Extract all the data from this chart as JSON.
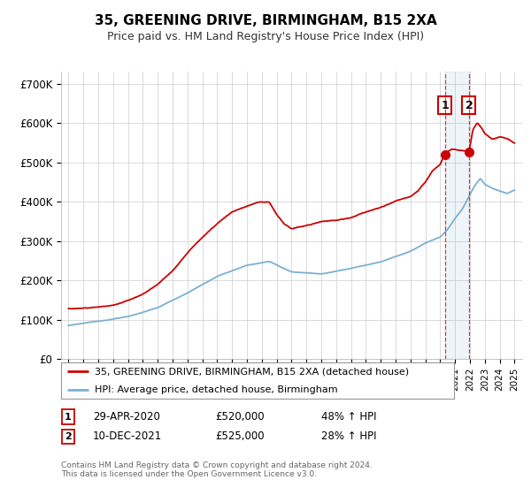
{
  "title": "35, GREENING DRIVE, BIRMINGHAM, B15 2XA",
  "subtitle": "Price paid vs. HM Land Registry's House Price Index (HPI)",
  "ylabel_ticks": [
    "£0",
    "£100K",
    "£200K",
    "£300K",
    "£400K",
    "£500K",
    "£600K",
    "£700K"
  ],
  "ytick_values": [
    0,
    100000,
    200000,
    300000,
    400000,
    500000,
    600000,
    700000
  ],
  "ylim": [
    0,
    730000
  ],
  "xlim_start": 1994.5,
  "xlim_end": 2025.5,
  "red_color": "#cc0000",
  "blue_color": "#7ab0d4",
  "legend_label1": "35, GREENING DRIVE, BIRMINGHAM, B15 2XA (detached house)",
  "legend_label2": "HPI: Average price, detached house, Birmingham",
  "sale1_date": "29-APR-2020",
  "sale1_price": "£520,000",
  "sale1_hpi": "48% ↑ HPI",
  "sale1_year": 2020.33,
  "sale1_value": 520000,
  "sale2_date": "10-DEC-2021",
  "sale2_price": "£525,000",
  "sale2_hpi": "28% ↑ HPI",
  "sale2_year": 2021.94,
  "sale2_value": 525000,
  "footer": "Contains HM Land Registry data © Crown copyright and database right 2024.\nThis data is licensed under the Open Government Licence v3.0.",
  "background_color": "#ffffff",
  "grid_color": "#cccccc"
}
